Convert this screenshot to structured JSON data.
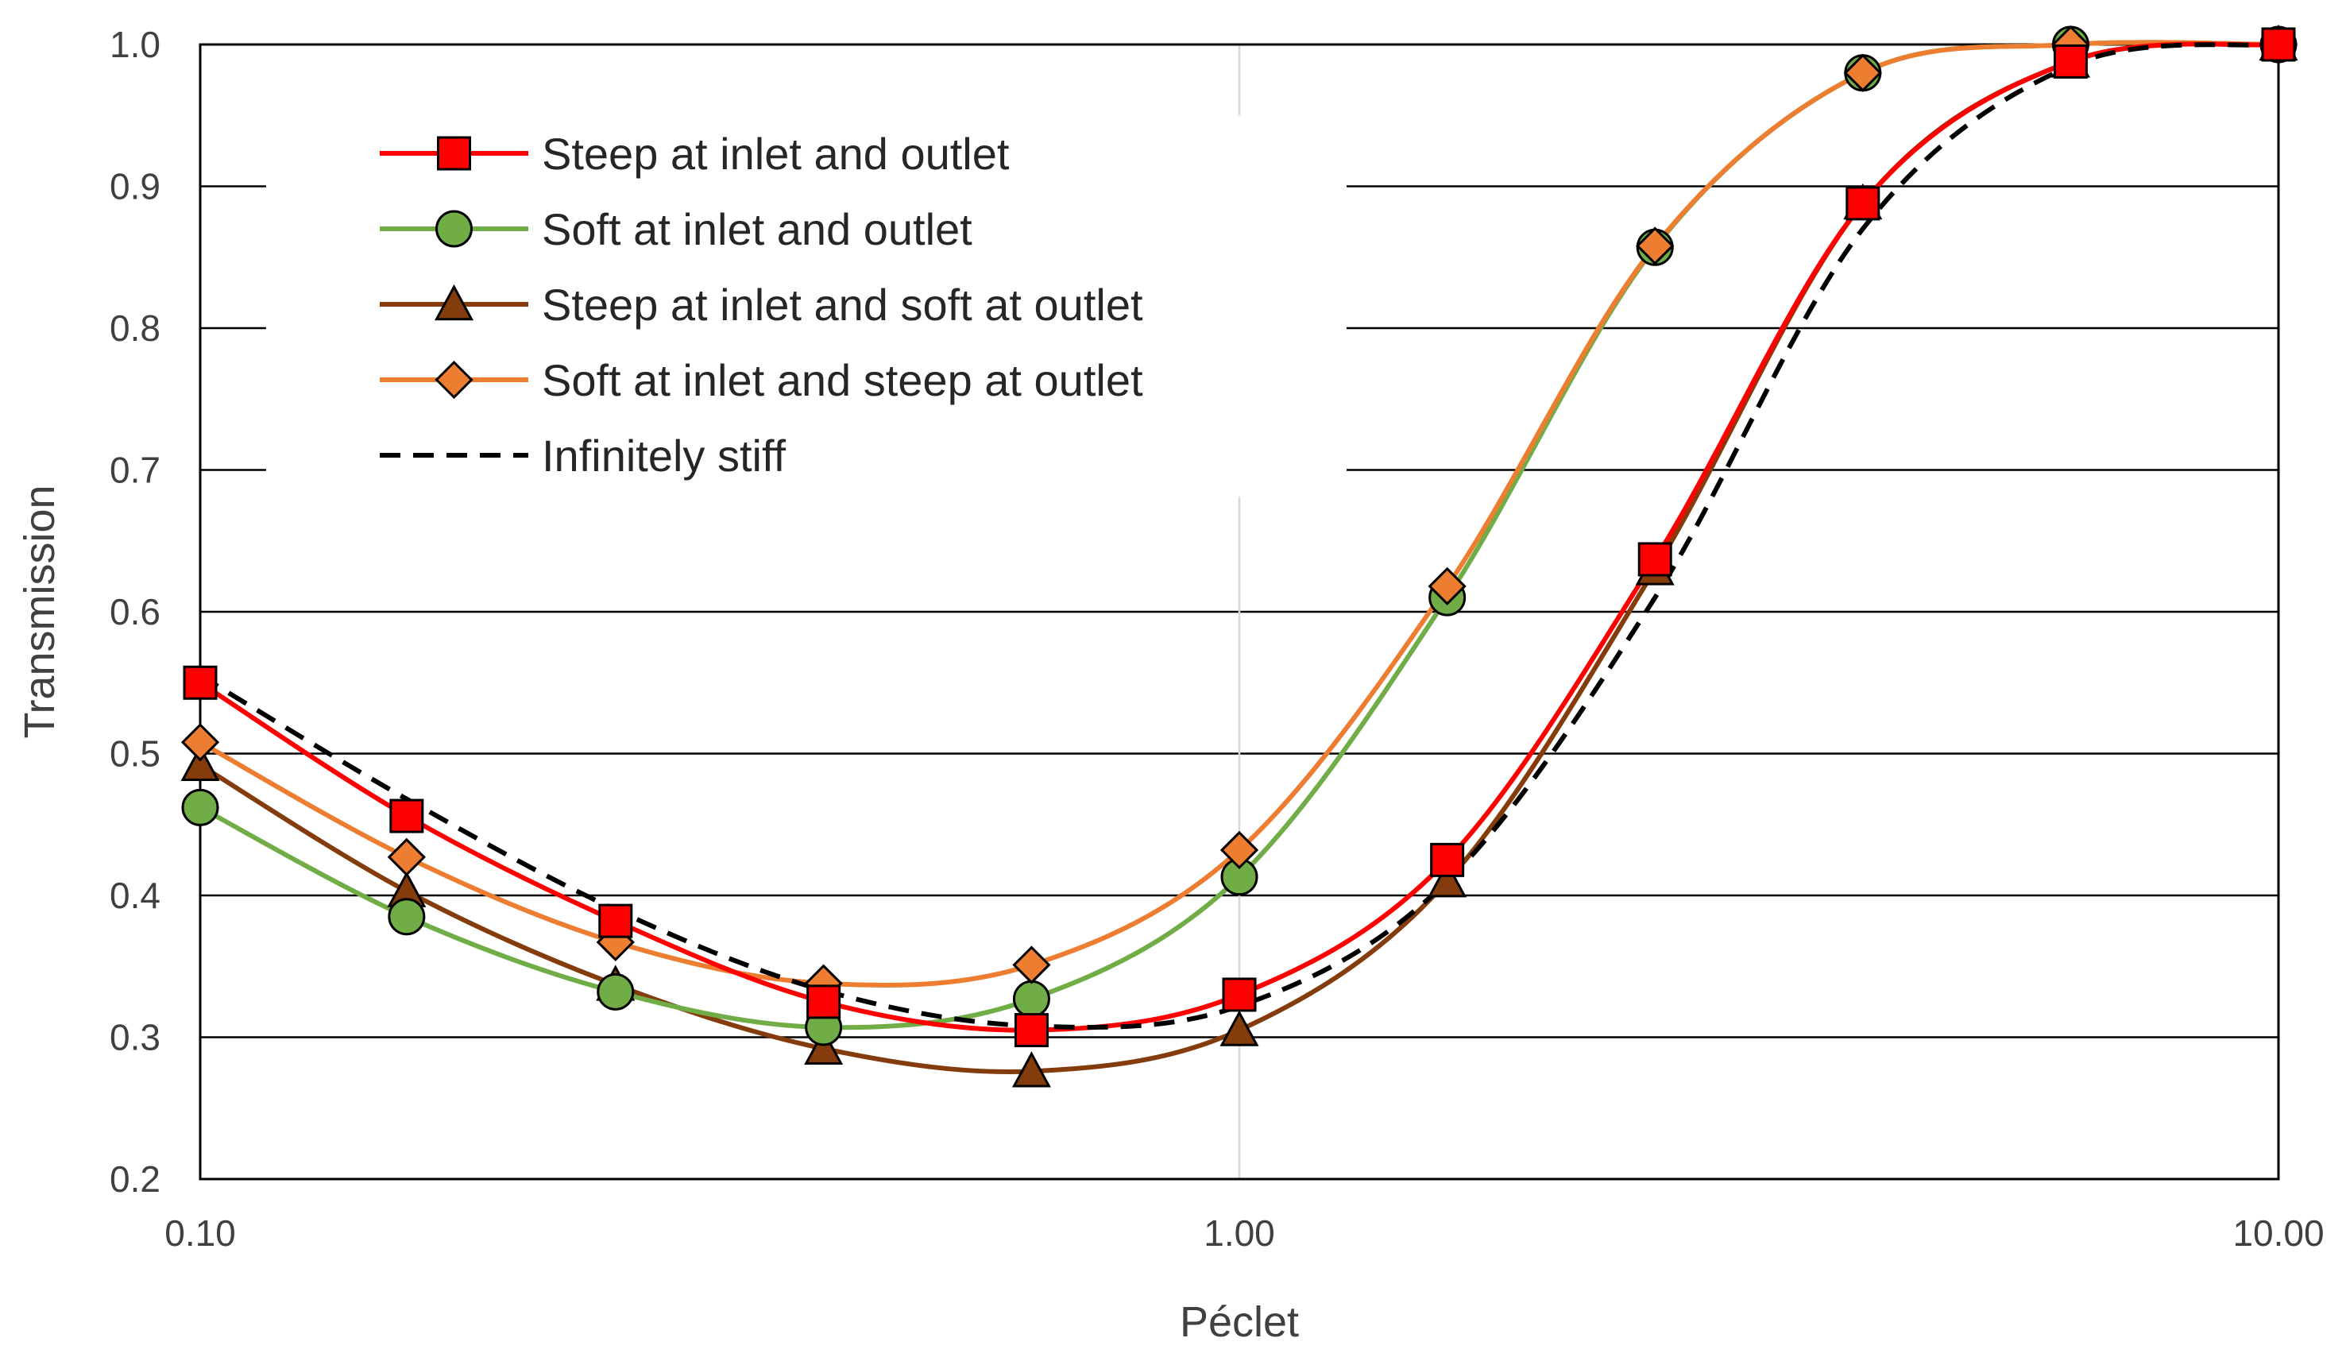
{
  "chart_data": {
    "type": "line",
    "title": "",
    "xlabel": "Péclet",
    "ylabel": "Transmission",
    "xscale": "log",
    "xlim": [
      0.1,
      10
    ],
    "ylim": [
      0.2,
      1.0
    ],
    "xticks": [
      0.1,
      1,
      10
    ],
    "xtick_labels": [
      "0.10",
      "1.00",
      "10.00"
    ],
    "yticks": [
      0.2,
      0.3,
      0.4,
      0.5,
      0.6,
      0.7,
      0.8,
      0.9,
      1.0
    ],
    "ytick_labels": [
      "0.2",
      "0.3",
      "0.4",
      "0.5",
      "0.6",
      "0.7",
      "0.8",
      "0.9",
      "1.0"
    ],
    "grid": "horizontal major lines, vertical line at 1.00",
    "legend_position": "top-left",
    "series": [
      {
        "name": "Steep at inlet and outlet",
        "color": "#ff0000",
        "marker": "square",
        "marker_fill": "#ff0000",
        "line_style": "solid",
        "x": [
          0.1,
          0.158,
          0.251,
          0.398,
          0.631,
          1.0,
          1.585,
          2.512,
          3.981,
          6.31,
          10.0
        ],
        "y": [
          0.55,
          0.456,
          0.382,
          0.325,
          0.305,
          0.33,
          0.425,
          0.637,
          0.888,
          0.988,
          1.0
        ]
      },
      {
        "name": "Soft at inlet and outlet",
        "color": "#70ad47",
        "marker": "circle",
        "marker_fill": "#70ad47",
        "line_style": "solid",
        "x": [
          0.1,
          0.158,
          0.251,
          0.398,
          0.631,
          1.0,
          1.585,
          2.512,
          3.981,
          6.31,
          10.0
        ],
        "y": [
          0.462,
          0.385,
          0.332,
          0.307,
          0.327,
          0.413,
          0.61,
          0.857,
          0.98,
          1.0,
          1.0
        ]
      },
      {
        "name": "Steep at inlet and soft at outlet",
        "color": "#843c0c",
        "marker": "triangle",
        "marker_fill": "#843c0c",
        "line_style": "solid",
        "x": [
          0.1,
          0.158,
          0.251,
          0.398,
          0.631,
          1.0,
          1.585,
          2.512,
          3.981,
          6.31,
          10.0
        ],
        "y": [
          0.492,
          0.403,
          0.337,
          0.292,
          0.276,
          0.305,
          0.41,
          0.63,
          0.888,
          0.988,
          1.0
        ]
      },
      {
        "name": "Soft at inlet and steep at outlet",
        "color": "#ed7d31",
        "marker": "diamond",
        "marker_fill": "#ed7d31",
        "line_style": "solid",
        "x": [
          0.1,
          0.158,
          0.251,
          0.398,
          0.631,
          1.0,
          1.585,
          2.512,
          3.981,
          6.31,
          10.0
        ],
        "y": [
          0.508,
          0.427,
          0.367,
          0.338,
          0.351,
          0.432,
          0.618,
          0.858,
          0.98,
          1.0,
          1.0
        ]
      },
      {
        "name": "Infinitely stiff",
        "color": "#000000",
        "marker": "none",
        "line_style": "dashed",
        "x": [
          0.1,
          0.158,
          0.251,
          0.398,
          0.631,
          1.0,
          1.585,
          2.512,
          3.981,
          6.31,
          10.0
        ],
        "y": [
          0.555,
          0.468,
          0.39,
          0.333,
          0.308,
          0.322,
          0.41,
          0.61,
          0.87,
          0.985,
          1.0
        ]
      }
    ]
  }
}
